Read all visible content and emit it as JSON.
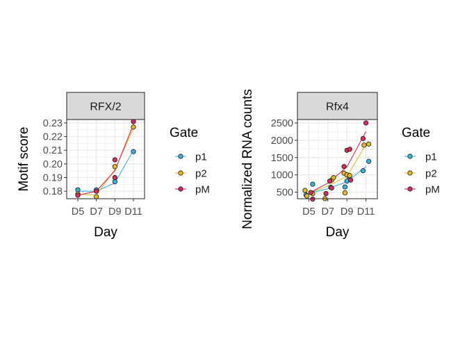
{
  "colors": {
    "p1": "#3BB0D8",
    "p2": "#E8B828",
    "pM": "#D42C55",
    "strip_fill": "#D9D9D9",
    "grid": "#EBEBEB",
    "axis": "#333333",
    "tick_text": "#4D4D4D"
  },
  "chart_data": [
    {
      "type": "scatter",
      "strip": "RFX/2",
      "xlabel": "Day",
      "ylabel": "Motif score",
      "x_categories": [
        "D5",
        "D7",
        "D9",
        "D11"
      ],
      "y_ticks": [
        "0.18",
        "0.19",
        "0.20",
        "0.21",
        "0.22",
        "0.23"
      ],
      "y_tick_values": [
        0.18,
        0.19,
        0.2,
        0.21,
        0.22,
        0.23
      ],
      "ylim": [
        0.1745,
        0.2325
      ],
      "grid": true,
      "legend_title": "Gate",
      "legend": [
        "p1",
        "p2",
        "pM"
      ],
      "series": [
        {
          "name": "p1",
          "points": [
            [
              1,
              0.181
            ],
            [
              2,
              0.181
            ],
            [
              3,
              0.187
            ],
            [
              4,
              0.209
            ]
          ],
          "line": [
            0.18,
            0.18,
            0.186,
            0.21
          ]
        },
        {
          "name": "p2",
          "points": [
            [
              1,
              0.178
            ],
            [
              2,
              0.176
            ],
            [
              3,
              0.198
            ],
            [
              4,
              0.227
            ]
          ],
          "line": [
            0.178,
            0.177,
            0.196,
            0.226
          ]
        },
        {
          "name": "pM",
          "points": [
            [
              1,
              0.177
            ],
            [
              2,
              0.18
            ],
            [
              3,
              0.203
            ],
            [
              3,
              0.19
            ],
            [
              4,
              0.231
            ]
          ],
          "line": [
            0.177,
            0.18,
            0.195,
            0.229
          ]
        }
      ]
    },
    {
      "type": "scatter",
      "strip": "Rfx4",
      "xlabel": "Day",
      "ylabel": "Normalized RNA counts",
      "x_categories": [
        "D5",
        "D7",
        "D9",
        "D11"
      ],
      "y_ticks": [
        "500",
        "1000",
        "1500",
        "2000",
        "2500"
      ],
      "y_tick_values": [
        500,
        1000,
        1500,
        2000,
        2500
      ],
      "ylim": [
        310,
        2600
      ],
      "grid": true,
      "legend_title": "Gate",
      "legend": [
        "p1",
        "p2",
        "pM"
      ],
      "series": [
        {
          "name": "p1",
          "points": [
            [
              0.85,
              420
            ],
            [
              1.2,
              730
            ],
            [
              2.15,
              640
            ],
            [
              2.9,
              650
            ],
            [
              3.0,
              820
            ],
            [
              3.1,
              960
            ],
            [
              3.85,
              1120
            ],
            [
              4.15,
              1390
            ]
          ],
          "line": [
            470,
            600,
            800,
            1240
          ]
        },
        {
          "name": "p2",
          "points": [
            [
              0.8,
              550
            ],
            [
              0.9,
              390
            ],
            [
              1.2,
              460
            ],
            [
              1.85,
              310
            ],
            [
              2.2,
              850
            ],
            [
              2.3,
              920
            ],
            [
              2.85,
              1050
            ],
            [
              2.9,
              480
            ],
            [
              3.0,
              1000
            ],
            [
              3.15,
              980
            ],
            [
              3.9,
              1860
            ],
            [
              4.15,
              1890
            ]
          ],
          "line": [
            470,
            680,
            950,
            1880
          ]
        },
        {
          "name": "pM",
          "points": [
            [
              1.1,
              490
            ],
            [
              1.2,
              300
            ],
            [
              1.9,
              460
            ],
            [
              2.1,
              820
            ],
            [
              2.2,
              620
            ],
            [
              2.85,
              1240
            ],
            [
              3.0,
              1710
            ],
            [
              3.15,
              1740
            ],
            [
              3.2,
              850
            ],
            [
              3.85,
              2050
            ],
            [
              4.0,
              2500
            ]
          ],
          "line": [
            470,
            760,
            1230,
            2250
          ]
        }
      ]
    }
  ]
}
